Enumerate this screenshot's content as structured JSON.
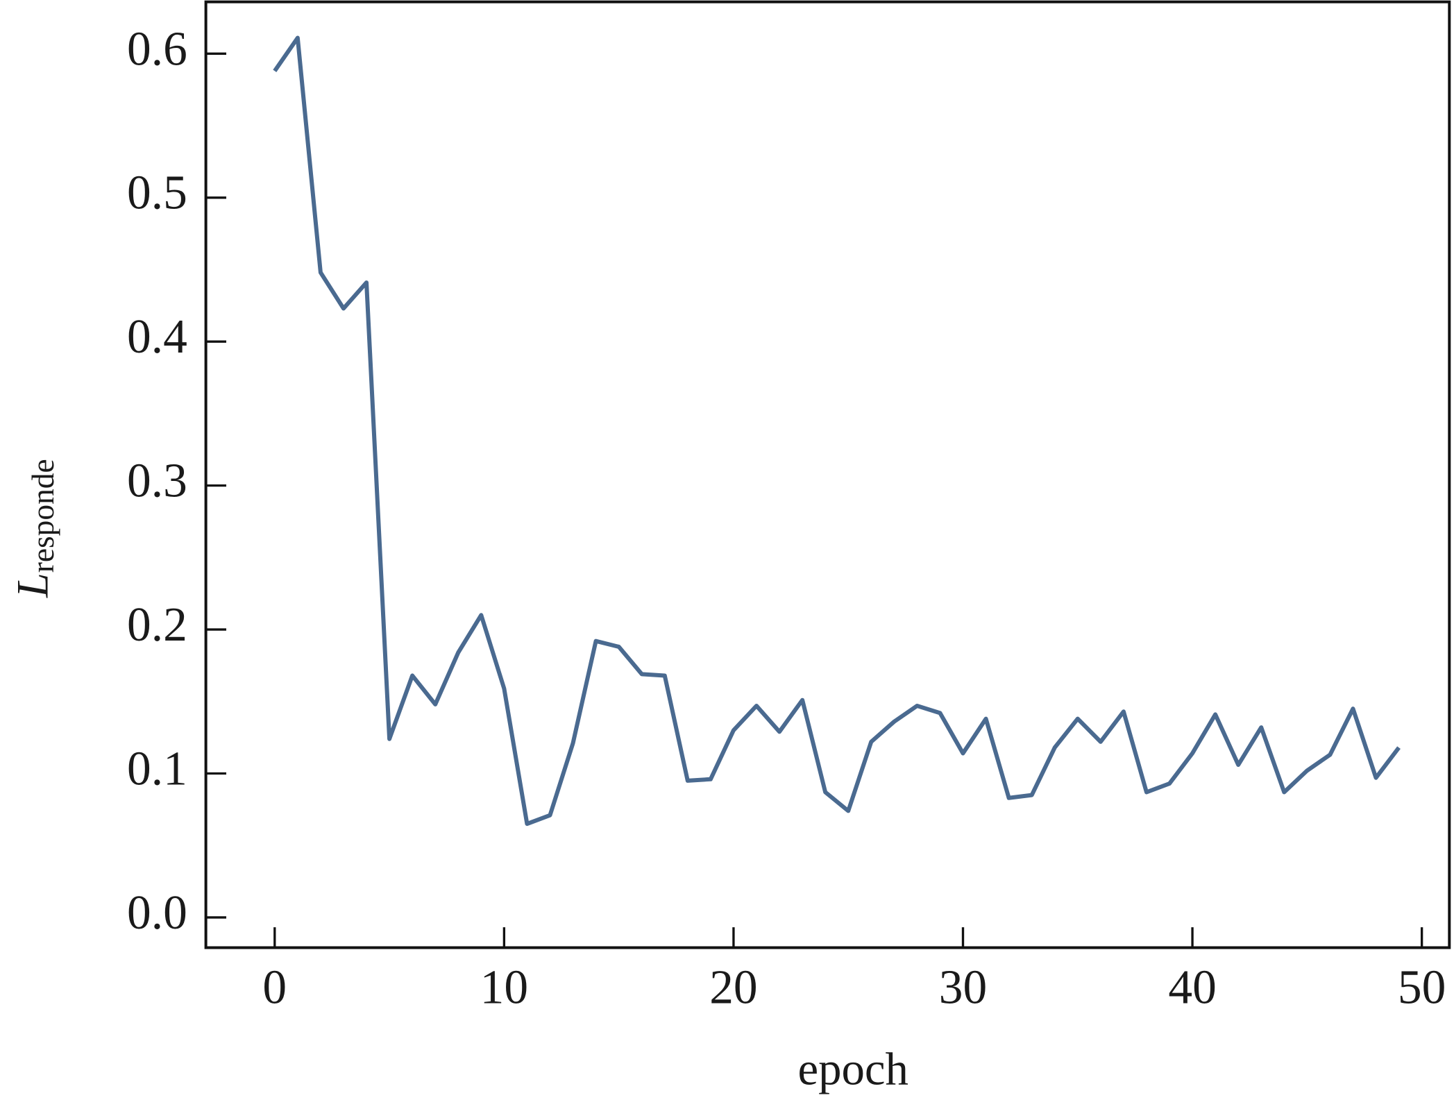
{
  "chart_data": {
    "type": "line",
    "xlabel": "epoch",
    "ylabel": {
      "main": "L",
      "sub": "responde"
    },
    "x": [
      0,
      1,
      2,
      3,
      4,
      5,
      6,
      7,
      8,
      9,
      10,
      11,
      12,
      13,
      14,
      15,
      16,
      17,
      18,
      19,
      20,
      21,
      22,
      23,
      24,
      25,
      26,
      27,
      28,
      29,
      30,
      31,
      32,
      33,
      34,
      35,
      36,
      37,
      38,
      39,
      40,
      41,
      42,
      43,
      44,
      45,
      46,
      47,
      48,
      49
    ],
    "series": [
      {
        "color": "#4a6a90",
        "values": [
          0.588,
          0.611,
          0.448,
          0.423,
          0.441,
          0.124,
          0.168,
          0.148,
          0.184,
          0.21,
          0.159,
          0.065,
          0.071,
          0.121,
          0.192,
          0.188,
          0.169,
          0.168,
          0.095,
          0.096,
          0.13,
          0.147,
          0.129,
          0.151,
          0.087,
          0.074,
          0.122,
          0.136,
          0.147,
          0.142,
          0.114,
          0.138,
          0.083,
          0.085,
          0.118,
          0.138,
          0.122,
          0.143,
          0.087,
          0.093,
          0.114,
          0.141,
          0.106,
          0.132,
          0.087,
          0.102,
          0.113,
          0.145,
          0.097,
          0.118
        ]
      }
    ],
    "xlim": [
      -3,
      51.2
    ],
    "ylim": [
      -0.021,
      0.636
    ],
    "xticks": [
      0,
      10,
      20,
      30,
      40,
      50
    ],
    "yticks": [
      {
        "value": 0,
        "label": "0.0"
      },
      0.1,
      0.2,
      0.3,
      0.4,
      0.5,
      0.6
    ]
  }
}
